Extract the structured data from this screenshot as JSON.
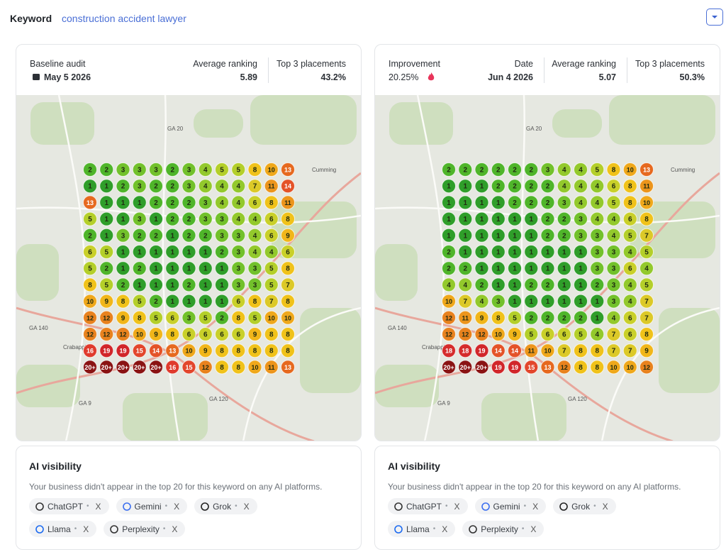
{
  "header": {
    "label": "Keyword",
    "keyword": "construction accident lawyer"
  },
  "cards": [
    {
      "stats": [
        {
          "label": "Baseline audit",
          "value": "May 5 2026"
        },
        {
          "label": "Average ranking",
          "value": "5.89"
        },
        {
          "label": "Top 3 placements",
          "value": "43.2%"
        }
      ],
      "map_labels": [
        "GA 20",
        "Cumming",
        "GA 140",
        "Crabapple",
        "GA 120",
        "GA 9"
      ],
      "grid": [
        [
          2,
          2,
          3,
          3,
          3,
          2,
          3,
          4,
          5,
          5,
          8,
          10,
          13
        ],
        [
          1,
          1,
          2,
          3,
          2,
          2,
          3,
          4,
          4,
          4,
          7,
          11,
          14
        ],
        [
          13,
          1,
          1,
          1,
          2,
          2,
          2,
          3,
          4,
          4,
          6,
          8,
          11
        ],
        [
          5,
          1,
          1,
          3,
          1,
          2,
          2,
          3,
          3,
          4,
          4,
          6,
          8
        ],
        [
          2,
          1,
          3,
          2,
          2,
          1,
          2,
          2,
          3,
          3,
          4,
          6,
          9
        ],
        [
          6,
          5,
          1,
          1,
          1,
          1,
          1,
          1,
          2,
          3,
          4,
          4,
          6
        ],
        [
          5,
          2,
          1,
          2,
          1,
          1,
          1,
          1,
          1,
          3,
          3,
          5,
          8
        ],
        [
          8,
          5,
          2,
          1,
          1,
          1,
          2,
          1,
          1,
          3,
          3,
          5,
          7
        ],
        [
          10,
          9,
          8,
          5,
          2,
          1,
          1,
          1,
          1,
          6,
          8,
          7,
          8
        ],
        [
          12,
          12,
          9,
          8,
          5,
          6,
          3,
          5,
          2,
          8,
          5,
          10,
          10
        ],
        [
          12,
          12,
          12,
          10,
          9,
          8,
          6,
          6,
          6,
          6,
          9,
          8,
          8
        ],
        [
          16,
          19,
          19,
          15,
          14,
          13,
          10,
          9,
          8,
          8,
          8,
          8,
          8
        ],
        [
          "20+",
          "20+",
          "20+",
          "20+",
          "20+",
          16,
          15,
          12,
          8,
          8,
          10,
          11,
          13
        ]
      ],
      "ai_visibility": {
        "title": "AI visibility",
        "message": "Your business didn't appear in the top 20 for this keyword on any AI platforms.",
        "platforms": [
          {
            "name": "ChatGPT",
            "status": "X"
          },
          {
            "name": "Gemini",
            "status": "X"
          },
          {
            "name": "Grok",
            "status": "X"
          },
          {
            "name": "Llama",
            "status": "X"
          },
          {
            "name": "Perplexity",
            "status": "X"
          }
        ]
      }
    },
    {
      "stats": [
        {
          "label": "Improvement",
          "value": "20.25%"
        },
        {
          "label": "Date",
          "value": "Jun 4 2026"
        },
        {
          "label": "Average ranking",
          "value": "5.07"
        },
        {
          "label": "Top 3 placements",
          "value": "50.3%"
        }
      ],
      "map_labels": [
        "GA 20",
        "Cumming",
        "GA 140",
        "Crabapple",
        "GA 120",
        "GA 9"
      ],
      "grid": [
        [
          2,
          2,
          2,
          2,
          2,
          2,
          3,
          4,
          4,
          5,
          8,
          10,
          13
        ],
        [
          1,
          1,
          1,
          2,
          2,
          2,
          2,
          4,
          4,
          4,
          6,
          8,
          11
        ],
        [
          1,
          1,
          1,
          1,
          2,
          2,
          2,
          3,
          4,
          4,
          5,
          8,
          10
        ],
        [
          1,
          1,
          1,
          1,
          1,
          1,
          2,
          2,
          3,
          4,
          4,
          6,
          8
        ],
        [
          1,
          1,
          1,
          1,
          1,
          1,
          2,
          2,
          3,
          3,
          4,
          5,
          7
        ],
        [
          2,
          1,
          1,
          1,
          1,
          1,
          1,
          1,
          1,
          3,
          3,
          4,
          5
        ],
        [
          2,
          2,
          1,
          1,
          1,
          1,
          1,
          1,
          1,
          3,
          3,
          6,
          4
        ],
        [
          4,
          4,
          2,
          1,
          1,
          2,
          2,
          1,
          1,
          2,
          3,
          4,
          5
        ],
        [
          10,
          7,
          4,
          3,
          1,
          1,
          1,
          1,
          1,
          1,
          3,
          4,
          7
        ],
        [
          12,
          11,
          9,
          8,
          5,
          2,
          2,
          2,
          2,
          1,
          4,
          6,
          7
        ],
        [
          12,
          12,
          12,
          10,
          9,
          5,
          6,
          6,
          5,
          4,
          7,
          6,
          8
        ],
        [
          18,
          18,
          19,
          14,
          14,
          11,
          10,
          7,
          8,
          8,
          7,
          7,
          9
        ],
        [
          "20+",
          "20+",
          "20+",
          19,
          19,
          15,
          13,
          12,
          8,
          8,
          10,
          10,
          12
        ]
      ],
      "ai_visibility": {
        "title": "AI visibility",
        "message": "Your business didn't appear in the top 20 for this keyword on any AI platforms.",
        "platforms": [
          {
            "name": "ChatGPT",
            "status": "X"
          },
          {
            "name": "Gemini",
            "status": "X"
          },
          {
            "name": "Grok",
            "status": "X"
          },
          {
            "name": "Llama",
            "status": "X"
          },
          {
            "name": "Perplexity",
            "status": "X"
          }
        ]
      }
    }
  ]
}
